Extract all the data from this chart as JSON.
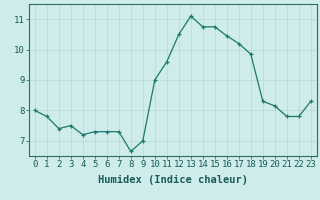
{
  "x": [
    0,
    1,
    2,
    3,
    4,
    5,
    6,
    7,
    8,
    9,
    10,
    11,
    12,
    13,
    14,
    15,
    16,
    17,
    18,
    19,
    20,
    21,
    22,
    23
  ],
  "y": [
    8.0,
    7.8,
    7.4,
    7.5,
    7.2,
    7.3,
    7.3,
    7.3,
    6.65,
    7.0,
    9.0,
    9.6,
    10.5,
    11.1,
    10.75,
    10.75,
    10.45,
    10.2,
    9.85,
    8.3,
    8.15,
    7.8,
    7.8,
    8.3
  ],
  "line_color": "#1a7a6e",
  "marker_color": "#1a7a6e",
  "bg_color": "#cdecea",
  "grid_color": "#b8d8d6",
  "axis_color": "#2a6e6a",
  "xlabel": "Humidex (Indice chaleur)",
  "ylabel": "",
  "title": "",
  "xlim": [
    -0.5,
    23.5
  ],
  "ylim": [
    6.5,
    11.5
  ],
  "yticks": [
    7,
    8,
    9,
    10,
    11
  ],
  "xticks": [
    0,
    1,
    2,
    3,
    4,
    5,
    6,
    7,
    8,
    9,
    10,
    11,
    12,
    13,
    14,
    15,
    16,
    17,
    18,
    19,
    20,
    21,
    22,
    23
  ],
  "font_size": 6.5,
  "label_font_size": 7.5,
  "font_color": "#1a5a5a"
}
